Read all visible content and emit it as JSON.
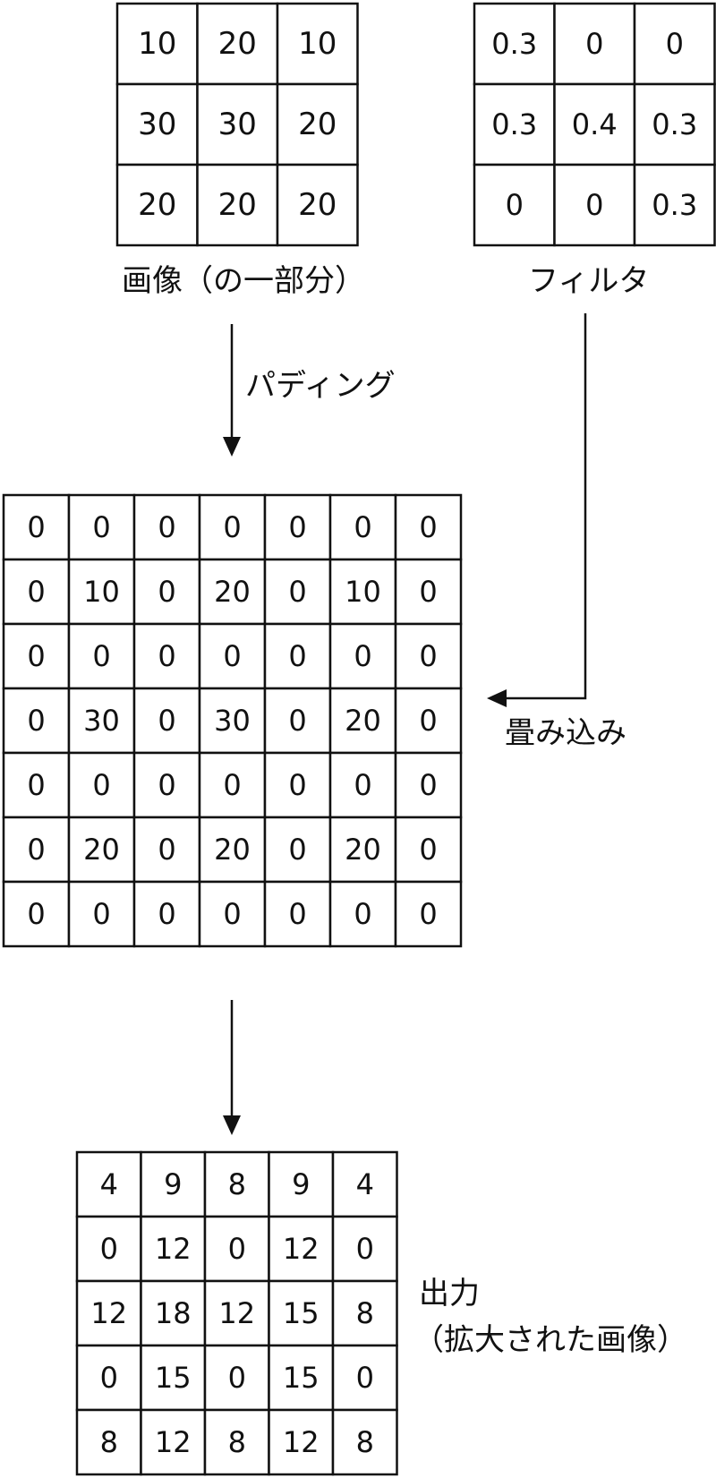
{
  "image_grid": {
    "label": "画像（の一部分）",
    "cells": [
      [
        "10",
        "20",
        "10"
      ],
      [
        "30",
        "30",
        "20"
      ],
      [
        "20",
        "20",
        "20"
      ]
    ]
  },
  "filter_grid": {
    "label": "フィルタ",
    "cells": [
      [
        "0.3",
        "0",
        "0"
      ],
      [
        "0.3",
        "0.4",
        "0.3"
      ],
      [
        "0",
        "0",
        "0.3"
      ]
    ]
  },
  "padding_label": "パディング",
  "padded_grid": {
    "cells": [
      [
        "0",
        "0",
        "0",
        "0",
        "0",
        "0",
        "0"
      ],
      [
        "0",
        "10",
        "0",
        "20",
        "0",
        "10",
        "0"
      ],
      [
        "0",
        "0",
        "0",
        "0",
        "0",
        "0",
        "0"
      ],
      [
        "0",
        "30",
        "0",
        "30",
        "0",
        "20",
        "0"
      ],
      [
        "0",
        "0",
        "0",
        "0",
        "0",
        "0",
        "0"
      ],
      [
        "0",
        "20",
        "0",
        "20",
        "0",
        "20",
        "0"
      ],
      [
        "0",
        "0",
        "0",
        "0",
        "0",
        "0",
        "0"
      ]
    ]
  },
  "convolution_label": "畳み込み",
  "output_grid": {
    "label_line1": "出力",
    "label_line2": "（拡大された画像）",
    "cells": [
      [
        "4",
        "9",
        "8",
        "9",
        "4"
      ],
      [
        "0",
        "12",
        "0",
        "12",
        "0"
      ],
      [
        "12",
        "18",
        "12",
        "15",
        "8"
      ],
      [
        "0",
        "15",
        "0",
        "15",
        "0"
      ],
      [
        "8",
        "12",
        "8",
        "12",
        "8"
      ]
    ]
  }
}
